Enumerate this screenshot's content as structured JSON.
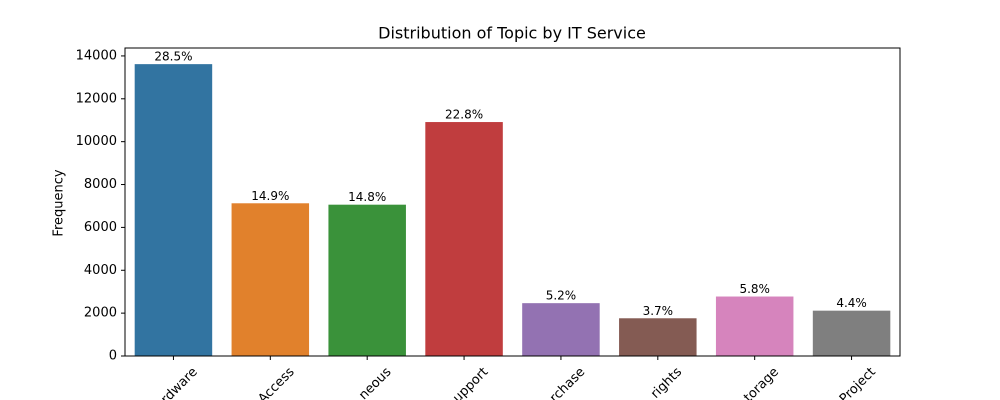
{
  "chart_data": {
    "type": "bar",
    "title": "Distribution of Topic by IT Service",
    "y_label": "Frequency",
    "categories": [
      "rdware",
      "Access",
      "neous",
      "upport",
      "rchase",
      "rights",
      "torage",
      "Project"
    ],
    "values": [
      13617,
      7125,
      7060,
      10915,
      2465,
      1760,
      2775,
      2115
    ],
    "bar_labels": [
      "28.5%",
      "14.9%",
      "14.8%",
      "22.8%",
      "5.2%",
      "3.7%",
      "5.8%",
      "4.4%"
    ],
    "colors": [
      "#3274a1",
      "#e1812c",
      "#3a923a",
      "#c03d3e",
      "#9372b2",
      "#845b53",
      "#d684bd",
      "#7f7f7f"
    ],
    "ylim": [
      0,
      14370
    ],
    "yticks": [
      0,
      2000,
      4000,
      6000,
      8000,
      10000,
      12000,
      14000
    ],
    "grid": false
  }
}
